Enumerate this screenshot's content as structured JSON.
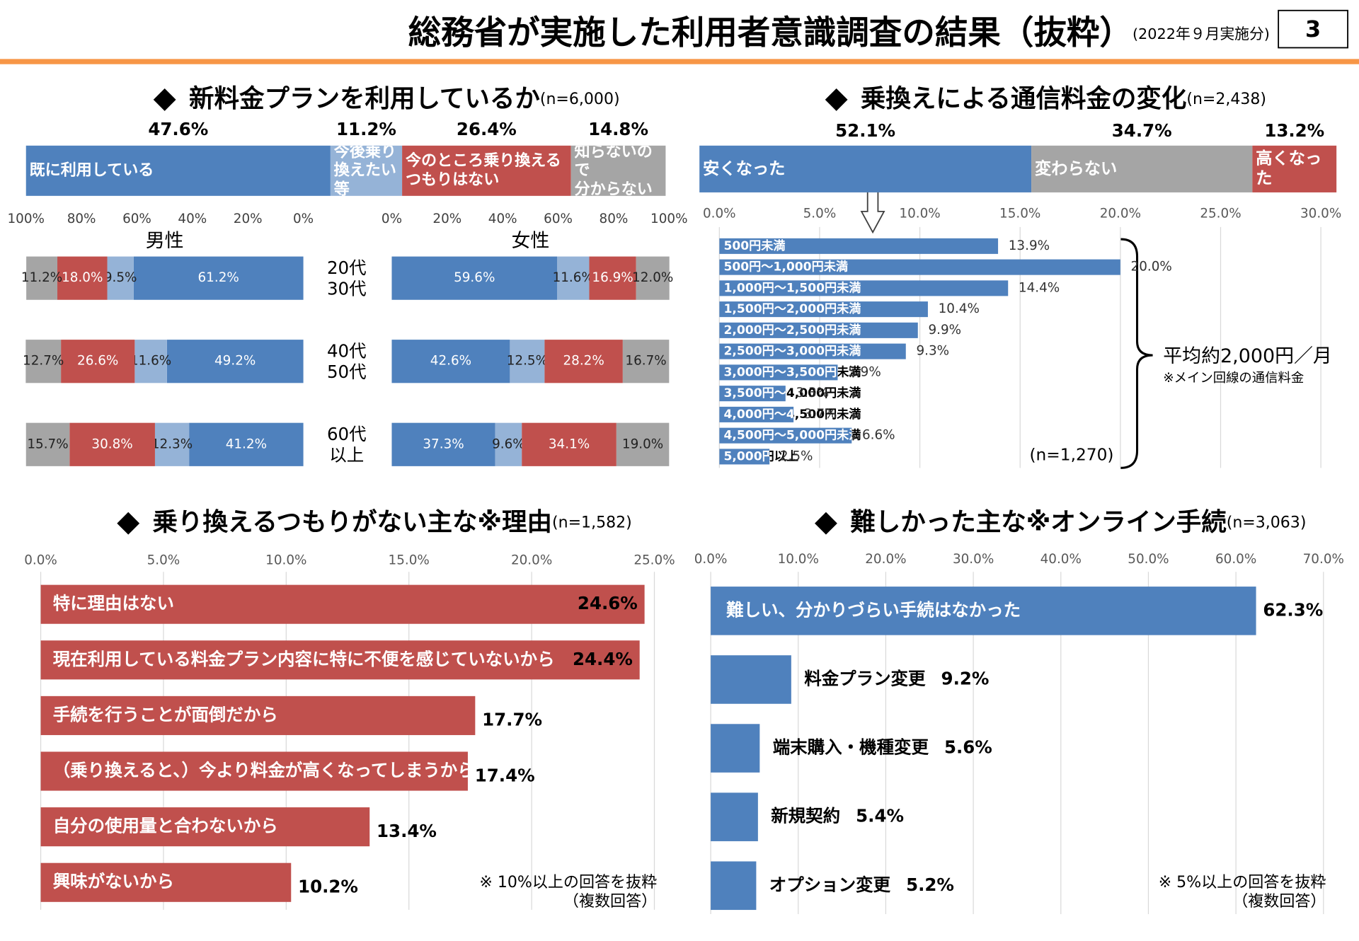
{
  "slide": {
    "title": "総務省が実施した利用者意識調査の結果（抜粋）",
    "date_note": "(2022年９月実施分)",
    "page_number": "3"
  },
  "chart_data": [
    {
      "type": "stacked-bar",
      "title": "新料金プランを利用しているか",
      "subtitle": "(n=6,000)",
      "series": [
        {
          "name": "既に利用している",
          "color": "#4f81bd",
          "values": [
            47.6
          ],
          "value_labels": [
            "47.6%"
          ]
        },
        {
          "name": "今後乗り\n換えたい等",
          "color": "#95b3d7",
          "values": [
            11.2
          ],
          "value_labels": [
            "11.2%"
          ]
        },
        {
          "name": "今のところ乗り換える\nつもりはない",
          "color": "#c0504d",
          "values": [
            26.4
          ],
          "value_labels": [
            "26.4%"
          ]
        },
        {
          "name": "知らないので\n分からない",
          "color": "#a5a5a5",
          "values": [
            14.8
          ],
          "value_labels": [
            "14.8%"
          ]
        }
      ]
    },
    {
      "type": "stacked-barh-panels",
      "categories": [
        "20代\n30代",
        "40代\n50代",
        "60代\n以上"
      ],
      "panels": [
        {
          "title": "男性",
          "xlim": [
            100,
            0
          ],
          "xticks": [
            {
              "value": 100,
              "label": "100%"
            },
            {
              "value": 80,
              "label": "80%"
            },
            {
              "value": 60,
              "label": "60%"
            },
            {
              "value": 40,
              "label": "40%"
            },
            {
              "value": 20,
              "label": "20%"
            },
            {
              "value": 0,
              "label": "0%"
            }
          ],
          "series": [
            {
              "color": "#4f81bd",
              "values": [
                61.2,
                49.2,
                41.2
              ],
              "value_labels": [
                "61.2%",
                "49.2%",
                "41.2%"
              ]
            },
            {
              "color": "#95b3d7",
              "values": [
                9.5,
                11.6,
                12.3
              ],
              "value_labels": [
                "9.5%",
                "11.6%",
                "12.3%"
              ]
            },
            {
              "color": "#c0504d",
              "values": [
                18.0,
                26.6,
                30.8
              ],
              "value_labels": [
                "18.0%",
                "26.6%",
                "30.8%"
              ]
            },
            {
              "color": "#a5a5a5",
              "values": [
                11.2,
                12.7,
                15.7
              ],
              "value_labels": [
                "11.2%",
                "12.7%",
                "15.7%"
              ]
            }
          ]
        },
        {
          "title": "女性",
          "xlim": [
            0,
            100
          ],
          "xticks": [
            {
              "value": 0,
              "label": "0%"
            },
            {
              "value": 20,
              "label": "20%"
            },
            {
              "value": 40,
              "label": "40%"
            },
            {
              "value": 60,
              "label": "60%"
            },
            {
              "value": 80,
              "label": "80%"
            },
            {
              "value": 100,
              "label": "100%"
            }
          ],
          "series": [
            {
              "color": "#4f81bd",
              "values": [
                59.6,
                42.6,
                37.3
              ],
              "value_labels": [
                "59.6%",
                "42.6%",
                "37.3%"
              ]
            },
            {
              "color": "#95b3d7",
              "values": [
                11.6,
                12.5,
                9.6
              ],
              "value_labels": [
                "11.6%",
                "12.5%",
                "9.6%"
              ]
            },
            {
              "color": "#c0504d",
              "values": [
                16.9,
                28.2,
                34.1
              ],
              "value_labels": [
                "16.9%",
                "28.2%",
                "34.1%"
              ]
            },
            {
              "color": "#a5a5a5",
              "values": [
                12.0,
                16.7,
                19.0
              ],
              "value_labels": [
                "12.0%",
                "16.7%",
                "19.0%"
              ]
            }
          ]
        }
      ]
    },
    {
      "type": "stacked-bar",
      "title": "乗換えによる通信料金の変化",
      "subtitle": "(n=2,438)",
      "series": [
        {
          "name": "安くなった",
          "color": "#4f81bd",
          "values": [
            52.1
          ],
          "value_labels": [
            "52.1%"
          ]
        },
        {
          "name": "変わらない",
          "color": "#a5a5a5",
          "values": [
            34.7
          ],
          "value_labels": [
            "34.7%"
          ]
        },
        {
          "name": "高くなった",
          "color": "#c0504d",
          "values": [
            13.2
          ],
          "value_labels": [
            "13.2%"
          ]
        }
      ]
    },
    {
      "type": "barh",
      "label_mode": "split",
      "color": "#4f81bd",
      "grid": true,
      "categories": [
        "500円未満",
        "500円～1,000円未満",
        "1,000円～1,500円未満",
        "1,500円～2,000円未満",
        "2,000円～2,500円未満",
        "2,500円～3,000円未満",
        "3,000円～3,500円未満",
        "3,500円～4,000円未満",
        "4,000円～4,500円未満",
        "4,500円～5,000円未満",
        "5,000円以上"
      ],
      "values": [
        13.9,
        20.0,
        14.4,
        10.4,
        9.9,
        9.3,
        5.9,
        3.3,
        3.7,
        6.6,
        2.5
      ],
      "value_labels": [
        "13.9%",
        "20.0%",
        "14.4%",
        "10.4%",
        "9.9%",
        "9.3%",
        "5.9%",
        "3.3%",
        "3.7%",
        "6.6%",
        "2.5%"
      ],
      "xlim": [
        0,
        30
      ],
      "xticks": [
        {
          "value": 0,
          "label": "0.0%"
        },
        {
          "value": 5,
          "label": "5.0%"
        },
        {
          "value": 10,
          "label": "10.0%"
        },
        {
          "value": 15,
          "label": "15.0%"
        },
        {
          "value": 20,
          "label": "20.0%"
        },
        {
          "value": 25,
          "label": "25.0%"
        },
        {
          "value": 30,
          "label": "30.0%"
        }
      ],
      "annotations": [
        "平均約2,000円／月",
        "※メイン回線の通信料金"
      ],
      "note": "(n=1,270)"
    },
    {
      "type": "barh",
      "label_mode": "inside",
      "title": "乗り換えるつもりがない主な※理由",
      "subtitle": "(n=1,582)",
      "color": "#c0504d",
      "grid": true,
      "categories": [
        "特に理由はない",
        "現在利用している料金プラン内容に特に不便を感じていないから",
        "手続を行うことが面倒だから",
        "（乗り換えると、）今より料金が高くなってしまうから",
        "自分の使用量と合わないから",
        "興味がないから"
      ],
      "values": [
        24.6,
        24.4,
        17.7,
        17.4,
        13.4,
        10.2
      ],
      "value_labels": [
        "24.6%",
        "24.4%",
        "17.7%",
        "17.4%",
        "13.4%",
        "10.2%"
      ],
      "xlim": [
        0,
        25
      ],
      "xticks": [
        {
          "value": 0,
          "label": "0.0%"
        },
        {
          "value": 5,
          "label": "5.0%"
        },
        {
          "value": 10,
          "label": "10.0%"
        },
        {
          "value": 15,
          "label": "15.0%"
        },
        {
          "value": 20,
          "label": "20.0%"
        },
        {
          "value": 25,
          "label": "25.0%"
        }
      ],
      "note": "※ 10%以上の回答を抜粋\n（複数回答）"
    },
    {
      "type": "barh",
      "label_mode": "auto",
      "title": "難しかった主な※オンライン手続",
      "subtitle": "(n=3,063)",
      "color": "#4f81bd",
      "grid": true,
      "categories": [
        "難しい、分かりづらい手続はなかった",
        "料金プラン変更",
        "端末購入・機種変更",
        "新規契約",
        "オプション変更"
      ],
      "values": [
        62.3,
        9.2,
        5.6,
        5.4,
        5.2
      ],
      "value_labels": [
        "62.3%",
        "9.2%",
        "5.6%",
        "5.4%",
        "5.2%"
      ],
      "xlim": [
        0,
        70
      ],
      "xticks": [
        {
          "value": 0,
          "label": "0.0%"
        },
        {
          "value": 10,
          "label": "10.0%"
        },
        {
          "value": 20,
          "label": "20.0%"
        },
        {
          "value": 30,
          "label": "30.0%"
        },
        {
          "value": 40,
          "label": "40.0%"
        },
        {
          "value": 50,
          "label": "50.0%"
        },
        {
          "value": 60,
          "label": "60.0%"
        },
        {
          "value": 70,
          "label": "70.0%"
        }
      ],
      "note": "※ 5%以上の回答を抜粋\n（複数回答）"
    }
  ]
}
